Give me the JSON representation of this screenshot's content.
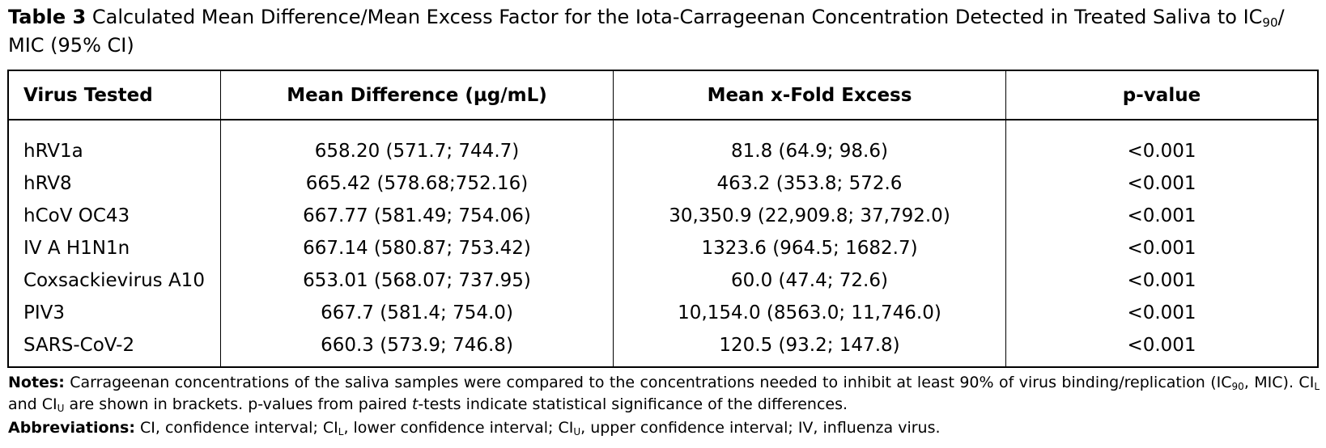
{
  "caption": {
    "label": "Table 3",
    "text_before_sub": " Calculated Mean Difference/Mean Excess Factor for the Iota-Carrageenan Concentration Detected in Treated Saliva to IC",
    "sub": "90",
    "text_after_sub": "/ MIC (95% CI)"
  },
  "table": {
    "headers": [
      "Virus Tested",
      "Mean Difference (µg/mL)",
      "Mean x-Fold Excess",
      "p-value"
    ],
    "rows": [
      [
        "hRV1a",
        "658.20 (571.7; 744.7)",
        "81.8 (64.9; 98.6)",
        "<0.001"
      ],
      [
        "hRV8",
        "665.42 (578.68;752.16)",
        "463.2 (353.8; 572.6",
        "<0.001"
      ],
      [
        "hCoV OC43",
        "667.77 (581.49; 754.06)",
        "30,350.9 (22,909.8; 37,792.0)",
        "<0.001"
      ],
      [
        "IV A H1N1n",
        "667.14 (580.87; 753.42)",
        "1323.6 (964.5; 1682.7)",
        "<0.001"
      ],
      [
        "Coxsackievirus A10",
        "653.01 (568.07; 737.95)",
        "60.0 (47.4; 72.6)",
        "<0.001"
      ],
      [
        "PIV3",
        "667.7 (581.4; 754.0)",
        "10,154.0 (8563.0; 11,746.0)",
        "<0.001"
      ],
      [
        "SARS-CoV-2",
        "660.3 (573.9; 746.8)",
        "120.5 (93.2; 147.8)",
        "<0.001"
      ]
    ]
  },
  "notes": {
    "label": "Notes:",
    "t1": " Carrageenan concentrations of the saliva samples were compared to the concentrations needed to inhibit at least 90% of virus binding/replication (IC",
    "s1": "90",
    "t2": ", MIC). CI",
    "s2": "L",
    "t3": " and CI",
    "s3": "U",
    "t4": " are shown in brackets. p-values from paired ",
    "t_italic": "t",
    "t5": "-tests indicate statistical significance of the differences."
  },
  "abbreviations": {
    "label": "Abbreviations:",
    "t1": " CI, confidence interval; CI",
    "s1": "L",
    "t2": ", lower confidence interval; CI",
    "s2": "U",
    "t3": ", upper confidence interval; IV, influenza virus."
  }
}
